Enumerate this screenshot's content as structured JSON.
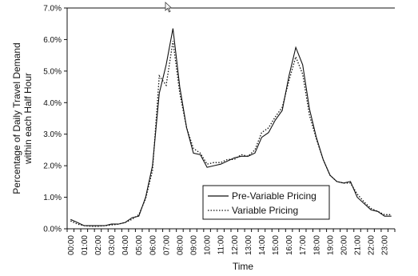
{
  "chart_data": {
    "type": "line",
    "xlabel": "Time",
    "ylabel_lines": [
      "Percentage of  Daily Travel Demand",
      "within each Half Hour"
    ],
    "ylim": [
      0,
      7.0
    ],
    "yticks": [
      "0.0%",
      "1.0%",
      "2.0%",
      "3.0%",
      "4.0%",
      "5.0%",
      "6.0%",
      "7.0%"
    ],
    "xtick_labels": [
      "00:00",
      "01:00",
      "02:00",
      "03:00",
      "04:00",
      "05:00",
      "06:00",
      "07:00",
      "08:00",
      "09:00",
      "10:00",
      "11:00",
      "12:00",
      "13:00",
      "14:00",
      "15:00",
      "16:00",
      "17:00",
      "18:00",
      "19:00",
      "20:00",
      "21:00",
      "22:00",
      "23:00"
    ],
    "x": [
      "00:00",
      "00:30",
      "01:00",
      "01:30",
      "02:00",
      "02:30",
      "03:00",
      "03:30",
      "04:00",
      "04:30",
      "05:00",
      "05:30",
      "06:00",
      "06:30",
      "07:00",
      "07:30",
      "08:00",
      "08:30",
      "09:00",
      "09:30",
      "10:00",
      "10:30",
      "11:00",
      "11:30",
      "12:00",
      "12:30",
      "13:00",
      "13:30",
      "14:00",
      "14:30",
      "15:00",
      "15:30",
      "16:00",
      "16:30",
      "17:00",
      "17:30",
      "18:00",
      "18:30",
      "19:00",
      "19:30",
      "20:00",
      "20:30",
      "21:00",
      "21:30",
      "22:00",
      "22:30",
      "23:00",
      "23:30"
    ],
    "grid": false,
    "legend_position": "lower-center",
    "series": [
      {
        "name": "Pre-Variable Pricing",
        "style": "solid",
        "values": [
          0.3,
          0.2,
          0.1,
          0.1,
          0.1,
          0.1,
          0.15,
          0.15,
          0.2,
          0.35,
          0.4,
          1.0,
          2.0,
          4.3,
          5.2,
          6.35,
          4.5,
          3.2,
          2.4,
          2.35,
          1.95,
          2.0,
          2.05,
          2.15,
          2.25,
          2.3,
          2.3,
          2.4,
          2.9,
          3.05,
          3.45,
          3.75,
          4.85,
          5.75,
          5.2,
          3.8,
          2.9,
          2.2,
          1.7,
          1.5,
          1.45,
          1.5,
          1.0,
          0.8,
          0.6,
          0.55,
          0.4,
          0.4
        ]
      },
      {
        "name": "Variable Pricing",
        "style": "dotted",
        "values": [
          0.25,
          0.15,
          0.1,
          0.08,
          0.08,
          0.1,
          0.12,
          0.15,
          0.2,
          0.3,
          0.45,
          0.95,
          1.85,
          4.85,
          4.55,
          5.95,
          4.3,
          3.2,
          2.55,
          2.4,
          2.05,
          2.1,
          2.1,
          2.2,
          2.2,
          2.35,
          2.3,
          2.5,
          3.05,
          3.2,
          3.55,
          3.85,
          4.7,
          5.45,
          4.9,
          3.6,
          2.85,
          2.2,
          1.7,
          1.5,
          1.45,
          1.45,
          1.1,
          0.85,
          0.65,
          0.55,
          0.45,
          0.45
        ]
      }
    ]
  },
  "colors": {
    "line": "#111111",
    "axis": "#111111",
    "background": "#ffffff"
  },
  "cursor_icon": "mouse-pointer-icon"
}
